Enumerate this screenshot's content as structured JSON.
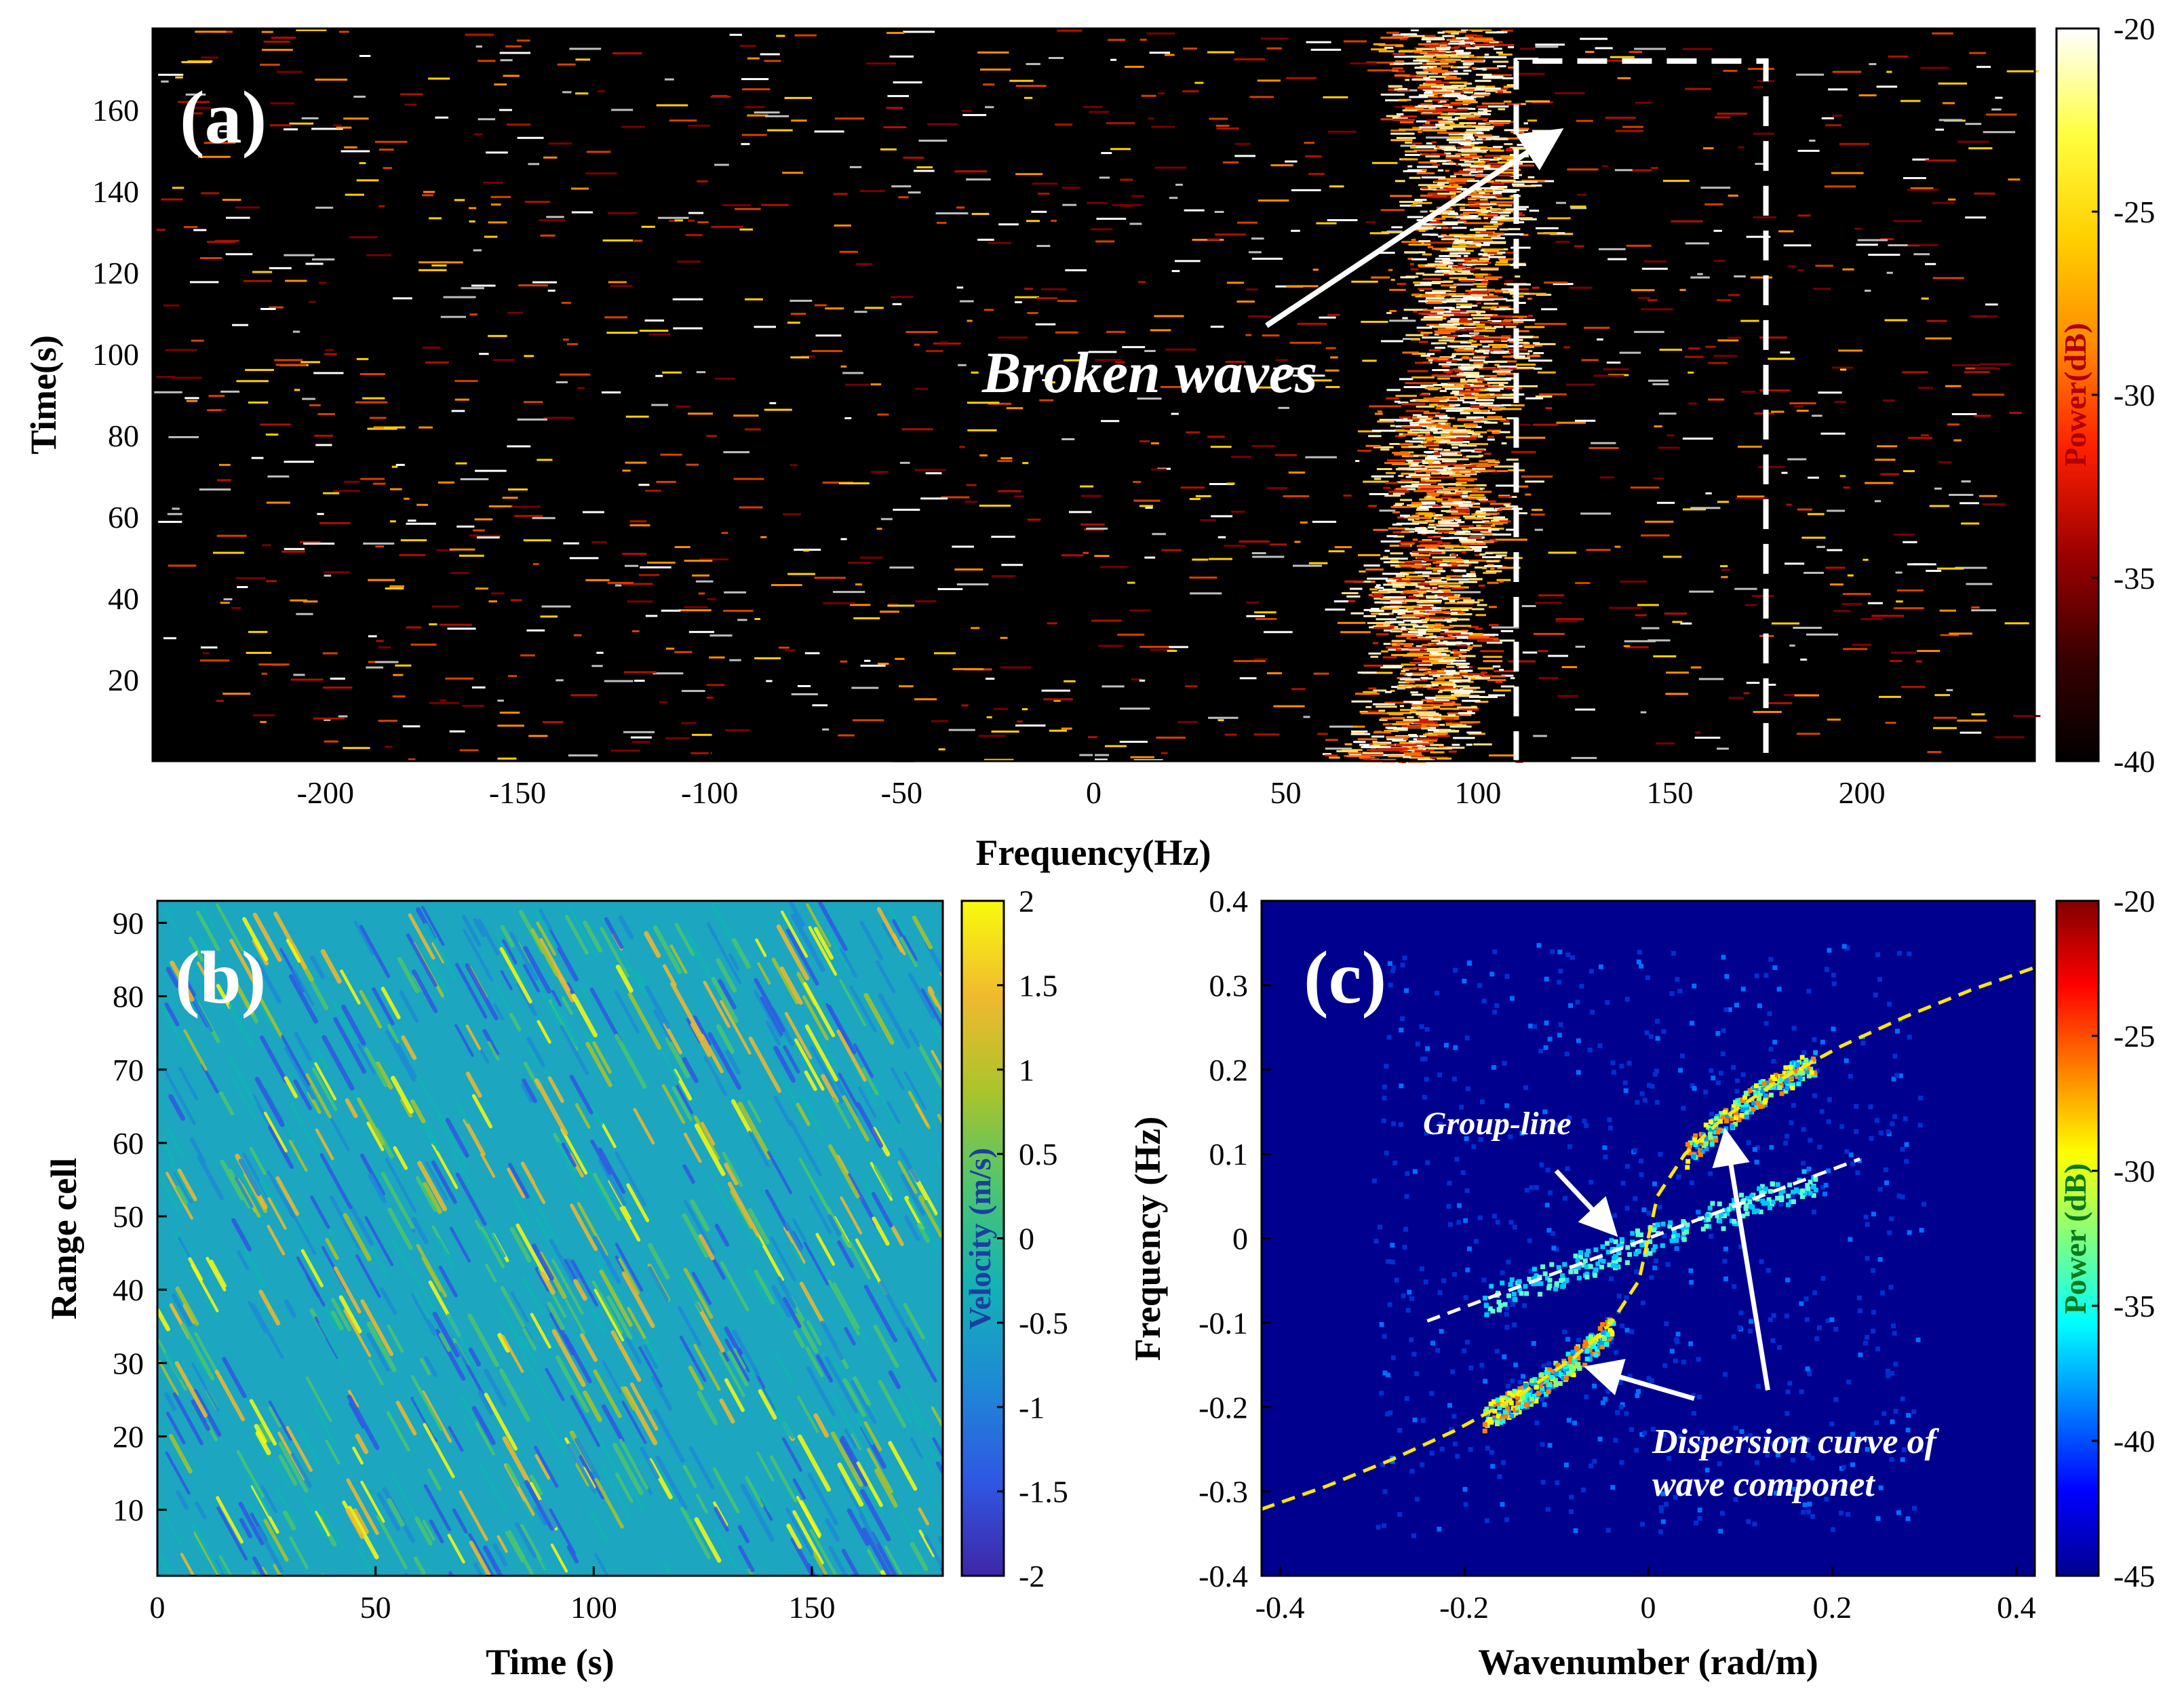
{
  "chart_data": [
    {
      "id": "a",
      "type": "heatmap",
      "panel_label": "(a)",
      "xlabel": "Frequency(Hz)",
      "ylabel": "Time(s)",
      "xlim": [
        -245,
        245
      ],
      "ylim": [
        0,
        180
      ],
      "xticks": [
        "-200",
        "-150",
        "-100",
        "-50",
        "0",
        "50",
        "100",
        "150",
        "200"
      ],
      "xtick_values": [
        -200,
        -150,
        -100,
        -50,
        0,
        50,
        100,
        150,
        200
      ],
      "yticks": [
        "20",
        "40",
        "60",
        "80",
        "100",
        "120",
        "140",
        "160"
      ],
      "ytick_values": [
        20,
        40,
        60,
        80,
        100,
        120,
        140,
        160
      ],
      "colorbar": {
        "label": "Power(dB)",
        "ticks": [
          "-20",
          "-25",
          "-30",
          "-35",
          "-40"
        ],
        "tick_values": [
          -20,
          -25,
          -30,
          -35,
          -40
        ],
        "range": [
          -40,
          -20
        ],
        "colormap": [
          "#000000",
          "#3a0000",
          "#a00000",
          "#ff2000",
          "#ff8c00",
          "#ffd000",
          "#ffff40",
          "#ffffff"
        ]
      },
      "bright_band_center_hz": [
        78,
        92,
        84,
        94,
        90,
        102,
        96,
        100,
        92
      ],
      "bright_band_times_s": [
        0,
        20,
        40,
        60,
        80,
        100,
        120,
        140,
        175
      ],
      "bright_band_halfwidth_hz": 12,
      "dashed_box": {
        "x0": 110,
        "x1": 175,
        "y0": 0,
        "y1": 172
      },
      "annotation": {
        "text": "Broken waves",
        "arrow_from": [
          45,
          107
        ],
        "arrow_to": [
          120,
          154
        ]
      }
    },
    {
      "id": "b",
      "type": "heatmap",
      "panel_label": "(b)",
      "xlabel": "Time (s)",
      "ylabel": "Range cell",
      "xlim": [
        0,
        180
      ],
      "ylim": [
        1,
        93
      ],
      "xticks": [
        "0",
        "50",
        "100",
        "150"
      ],
      "xtick_values": [
        0,
        50,
        100,
        150
      ],
      "yticks": [
        "10",
        "20",
        "30",
        "40",
        "50",
        "60",
        "70",
        "80",
        "90"
      ],
      "ytick_values": [
        10,
        20,
        30,
        40,
        50,
        60,
        70,
        80,
        90
      ],
      "colorbar": {
        "label": "Velocity (m/s)",
        "ticks": [
          "2",
          "1.5",
          "1",
          "0.5",
          "0",
          "-0.5",
          "-1",
          "-1.5",
          "-2"
        ],
        "tick_values": [
          2,
          1.5,
          1,
          0.5,
          0,
          -0.5,
          -1,
          -1.5,
          -2
        ],
        "range": [
          -2,
          2
        ],
        "colormap": [
          "#3e26a8",
          "#2f58e3",
          "#1e8ad5",
          "#13b2b6",
          "#4bc571",
          "#a8c42c",
          "#f0b92e",
          "#f9fb0e"
        ]
      }
    },
    {
      "id": "c",
      "type": "heatmap",
      "panel_label": "(c)",
      "xlabel": "Wavenumber (rad/m)",
      "ylabel": "Frequency (Hz)",
      "xlim": [
        -0.42,
        0.42
      ],
      "ylim": [
        -0.4,
        0.4
      ],
      "xticks": [
        "-0.4",
        "-0.2",
        "0",
        "0.2",
        "0.4"
      ],
      "xtick_values": [
        -0.4,
        -0.2,
        0,
        0.2,
        0.4
      ],
      "yticks": [
        "0.4",
        "0.3",
        "0.2",
        "0.1",
        "0",
        "-0.1",
        "-0.2",
        "-0.3",
        "-0.4"
      ],
      "ytick_values": [
        0.4,
        0.3,
        0.2,
        0.1,
        0,
        -0.1,
        -0.2,
        -0.3,
        -0.4
      ],
      "colorbar": {
        "label": "Power (dB)",
        "ticks": [
          "-20",
          "-25",
          "-30",
          "-35",
          "-40",
          "-45"
        ],
        "tick_values": [
          -20,
          -25,
          -30,
          -35,
          -40,
          -45
        ],
        "range": [
          -45,
          -20
        ],
        "colormap": [
          "#00008f",
          "#0000ff",
          "#0080ff",
          "#00ffff",
          "#80ff80",
          "#ffff00",
          "#ff8000",
          "#ff0000",
          "#800000"
        ]
      },
      "dispersion_curve": {
        "k": [
          -0.42,
          -0.35,
          -0.28,
          -0.21,
          -0.14,
          -0.08,
          -0.04,
          -0.01,
          0,
          0.01,
          0.04,
          0.08,
          0.14,
          0.21,
          0.28,
          0.35,
          0.42
        ],
        "f": [
          -0.321,
          -0.294,
          -0.263,
          -0.228,
          -0.186,
          -0.141,
          -0.1,
          -0.05,
          0,
          0.05,
          0.1,
          0.141,
          0.186,
          0.228,
          0.263,
          0.294,
          0.321
        ]
      },
      "group_line": {
        "k": [
          -0.24,
          0.23
        ],
        "f": [
          -0.098,
          0.094
        ]
      },
      "annotations": [
        {
          "text": "Group-line",
          "arrow_from": [
            -0.1,
            0.08
          ],
          "arrow_to": [
            -0.04,
            0.01
          ]
        },
        {
          "text": "Dispersion curve of",
          "arrow_from": [
            0.13,
            -0.18
          ],
          "arrow_to": [
            0.085,
            0.12
          ]
        },
        {
          "text": "wave componet",
          "arrow_from": [
            0.05,
            -0.19
          ],
          "arrow_to": [
            -0.06,
            -0.155
          ]
        }
      ]
    }
  ]
}
